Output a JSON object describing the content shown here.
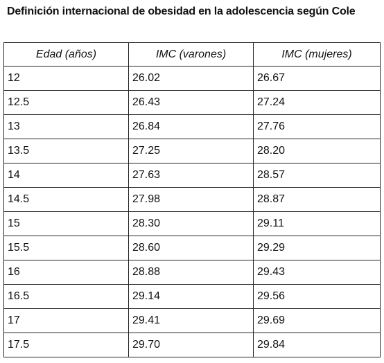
{
  "title": "Definición internacional de obesidad en la adolescencia según Cole",
  "table": {
    "header": [
      "Edad (años)",
      "IMC (varones)",
      "IMC (mujeres)"
    ],
    "rows": [
      [
        "12",
        "26.02",
        "26.67"
      ],
      [
        "12.5",
        "26.43",
        "27.24"
      ],
      [
        "13",
        "26.84",
        "27.76"
      ],
      [
        "13.5",
        "27.25",
        "28.20"
      ],
      [
        "14",
        "27.63",
        "28.57"
      ],
      [
        "14.5",
        "27.98",
        "28.87"
      ],
      [
        "15",
        "28.30",
        "29.11"
      ],
      [
        "15.5",
        "28.60",
        "29.29"
      ],
      [
        "16",
        "28.88",
        "29.43"
      ],
      [
        "16.5",
        "29.14",
        "29.56"
      ],
      [
        "17",
        "29.41",
        "29.69"
      ],
      [
        "17.5",
        "29.70",
        "29.84"
      ]
    ]
  }
}
